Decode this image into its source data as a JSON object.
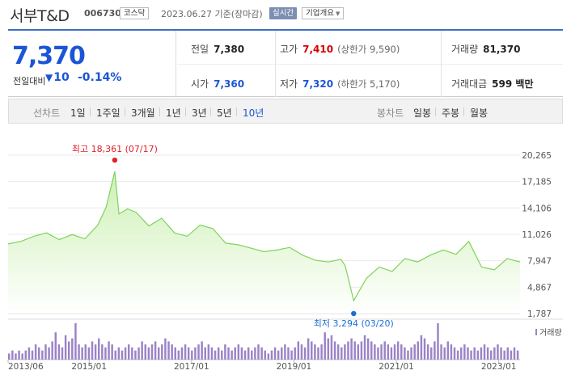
{
  "header": {
    "stock_name": "서부T&D",
    "stock_code": "006730",
    "market": "코스닥",
    "date_text": "2023.06.27 기준(장마감)",
    "live_label": "실시간",
    "overview_label": "기업개요"
  },
  "summary": {
    "current_price": "7,370",
    "prev_label": "전일대비",
    "change_amount": "10",
    "change_percent": "-0.14%",
    "prev_close_label": "전일",
    "prev_close_value": "7,380",
    "high_label": "고가",
    "high_value": "7,410",
    "upper_limit_text": "(상한가 9,590)",
    "volume_label": "거래량",
    "volume_value": "81,370",
    "open_label": "시가",
    "open_value": "7,360",
    "low_label": "저가",
    "low_value": "7,320",
    "lower_limit_text": "(하한가 5,170)",
    "amount_label": "거래대금",
    "amount_value": "599 백만"
  },
  "tabs": {
    "line_chart_label": "선차트",
    "line_tabs": [
      "1일",
      "1주일",
      "3개월",
      "1년",
      "3년",
      "5년",
      "10년"
    ],
    "active_line_tab": "10년",
    "candle_chart_label": "봉차트",
    "candle_tabs": [
      "일봉",
      "주봉",
      "월봉"
    ]
  },
  "colors": {
    "line": "#7fd35a",
    "fill_top": "#cdf0b4",
    "fill_bottom": "#ffffff",
    "volume_bar": "#9b83c7",
    "high_marker": "#e0202a",
    "low_marker": "#1a6fd6",
    "price_blue": "#1a55d6",
    "price_red": "#d60000"
  },
  "chart_data": {
    "type": "area",
    "yticks": [
      "20,265",
      "17,185",
      "14,106",
      "11,026",
      "7,947",
      "4,867",
      "1,787"
    ],
    "ylim": [
      1787,
      20265
    ],
    "xticks": [
      "2013/06",
      "2015/01",
      "2017/01",
      "2019/01",
      "2021/01",
      "2023/01"
    ],
    "high_annotation": "최고 18,361 (07/17)",
    "low_annotation": "최저 3,294 (03/20)",
    "volume_legend": "거래량",
    "series": [
      {
        "dates": [
          "2013/06",
          "2013/09",
          "2013/12",
          "2014/03",
          "2014/06",
          "2014/09",
          "2014/12",
          "2015/03",
          "2015/05",
          "2015/07",
          "2015/08",
          "2015/10",
          "2015/12",
          "2016/03",
          "2016/06",
          "2016/09",
          "2016/12",
          "2017/03",
          "2017/06",
          "2017/09",
          "2017/12",
          "2018/03",
          "2018/06",
          "2018/09",
          "2018/12",
          "2019/03",
          "2019/06",
          "2019/09",
          "2019/12",
          "2020/01",
          "2020/03",
          "2020/06",
          "2020/09",
          "2020/12",
          "2021/03",
          "2021/06",
          "2021/09",
          "2021/12",
          "2022/03",
          "2022/06",
          "2022/09",
          "2022/12",
          "2023/03",
          "2023/06"
        ],
        "values": [
          9900,
          10200,
          10800,
          11200,
          10400,
          11000,
          10500,
          12100,
          14200,
          18361,
          13400,
          14000,
          13600,
          12000,
          12900,
          11200,
          10800,
          12100,
          11700,
          10000,
          9800,
          9400,
          9000,
          9200,
          9500,
          8600,
          8000,
          7800,
          8100,
          7400,
          3294,
          5900,
          7200,
          6700,
          8200,
          7800,
          8600,
          9200,
          8700,
          10200,
          7200,
          6900,
          8200,
          7800
        ]
      }
    ],
    "volume": [
      2,
      3,
      2,
      3,
      2,
      3,
      4,
      3,
      5,
      4,
      3,
      5,
      4,
      6,
      9,
      5,
      4,
      8,
      6,
      7,
      12,
      5,
      4,
      5,
      4,
      6,
      5,
      7,
      5,
      4,
      6,
      5,
      3,
      4,
      3,
      4,
      5,
      4,
      3,
      4,
      6,
      5,
      4,
      5,
      6,
      4,
      5,
      7,
      6,
      5,
      4,
      3,
      4,
      5,
      4,
      3,
      4,
      5,
      6,
      4,
      5,
      4,
      3,
      4,
      3,
      5,
      4,
      3,
      4,
      5,
      4,
      3,
      4,
      3,
      4,
      5,
      4,
      3,
      2,
      3,
      4,
      3,
      4,
      5,
      4,
      3,
      4,
      6,
      5,
      4,
      7,
      6,
      5,
      4,
      5,
      9,
      7,
      8,
      6,
      5,
      4,
      5,
      6,
      7,
      6,
      5,
      6,
      8,
      7,
      6,
      5,
      4,
      5,
      6,
      5,
      4,
      5,
      6,
      5,
      4,
      3,
      4,
      5,
      6,
      8,
      7,
      5,
      4,
      6,
      12,
      5,
      4,
      6,
      5,
      4,
      3,
      4,
      5,
      4,
      3,
      4,
      3,
      4,
      5,
      4,
      3,
      4,
      5,
      4,
      3,
      4,
      3,
      4,
      3
    ]
  }
}
